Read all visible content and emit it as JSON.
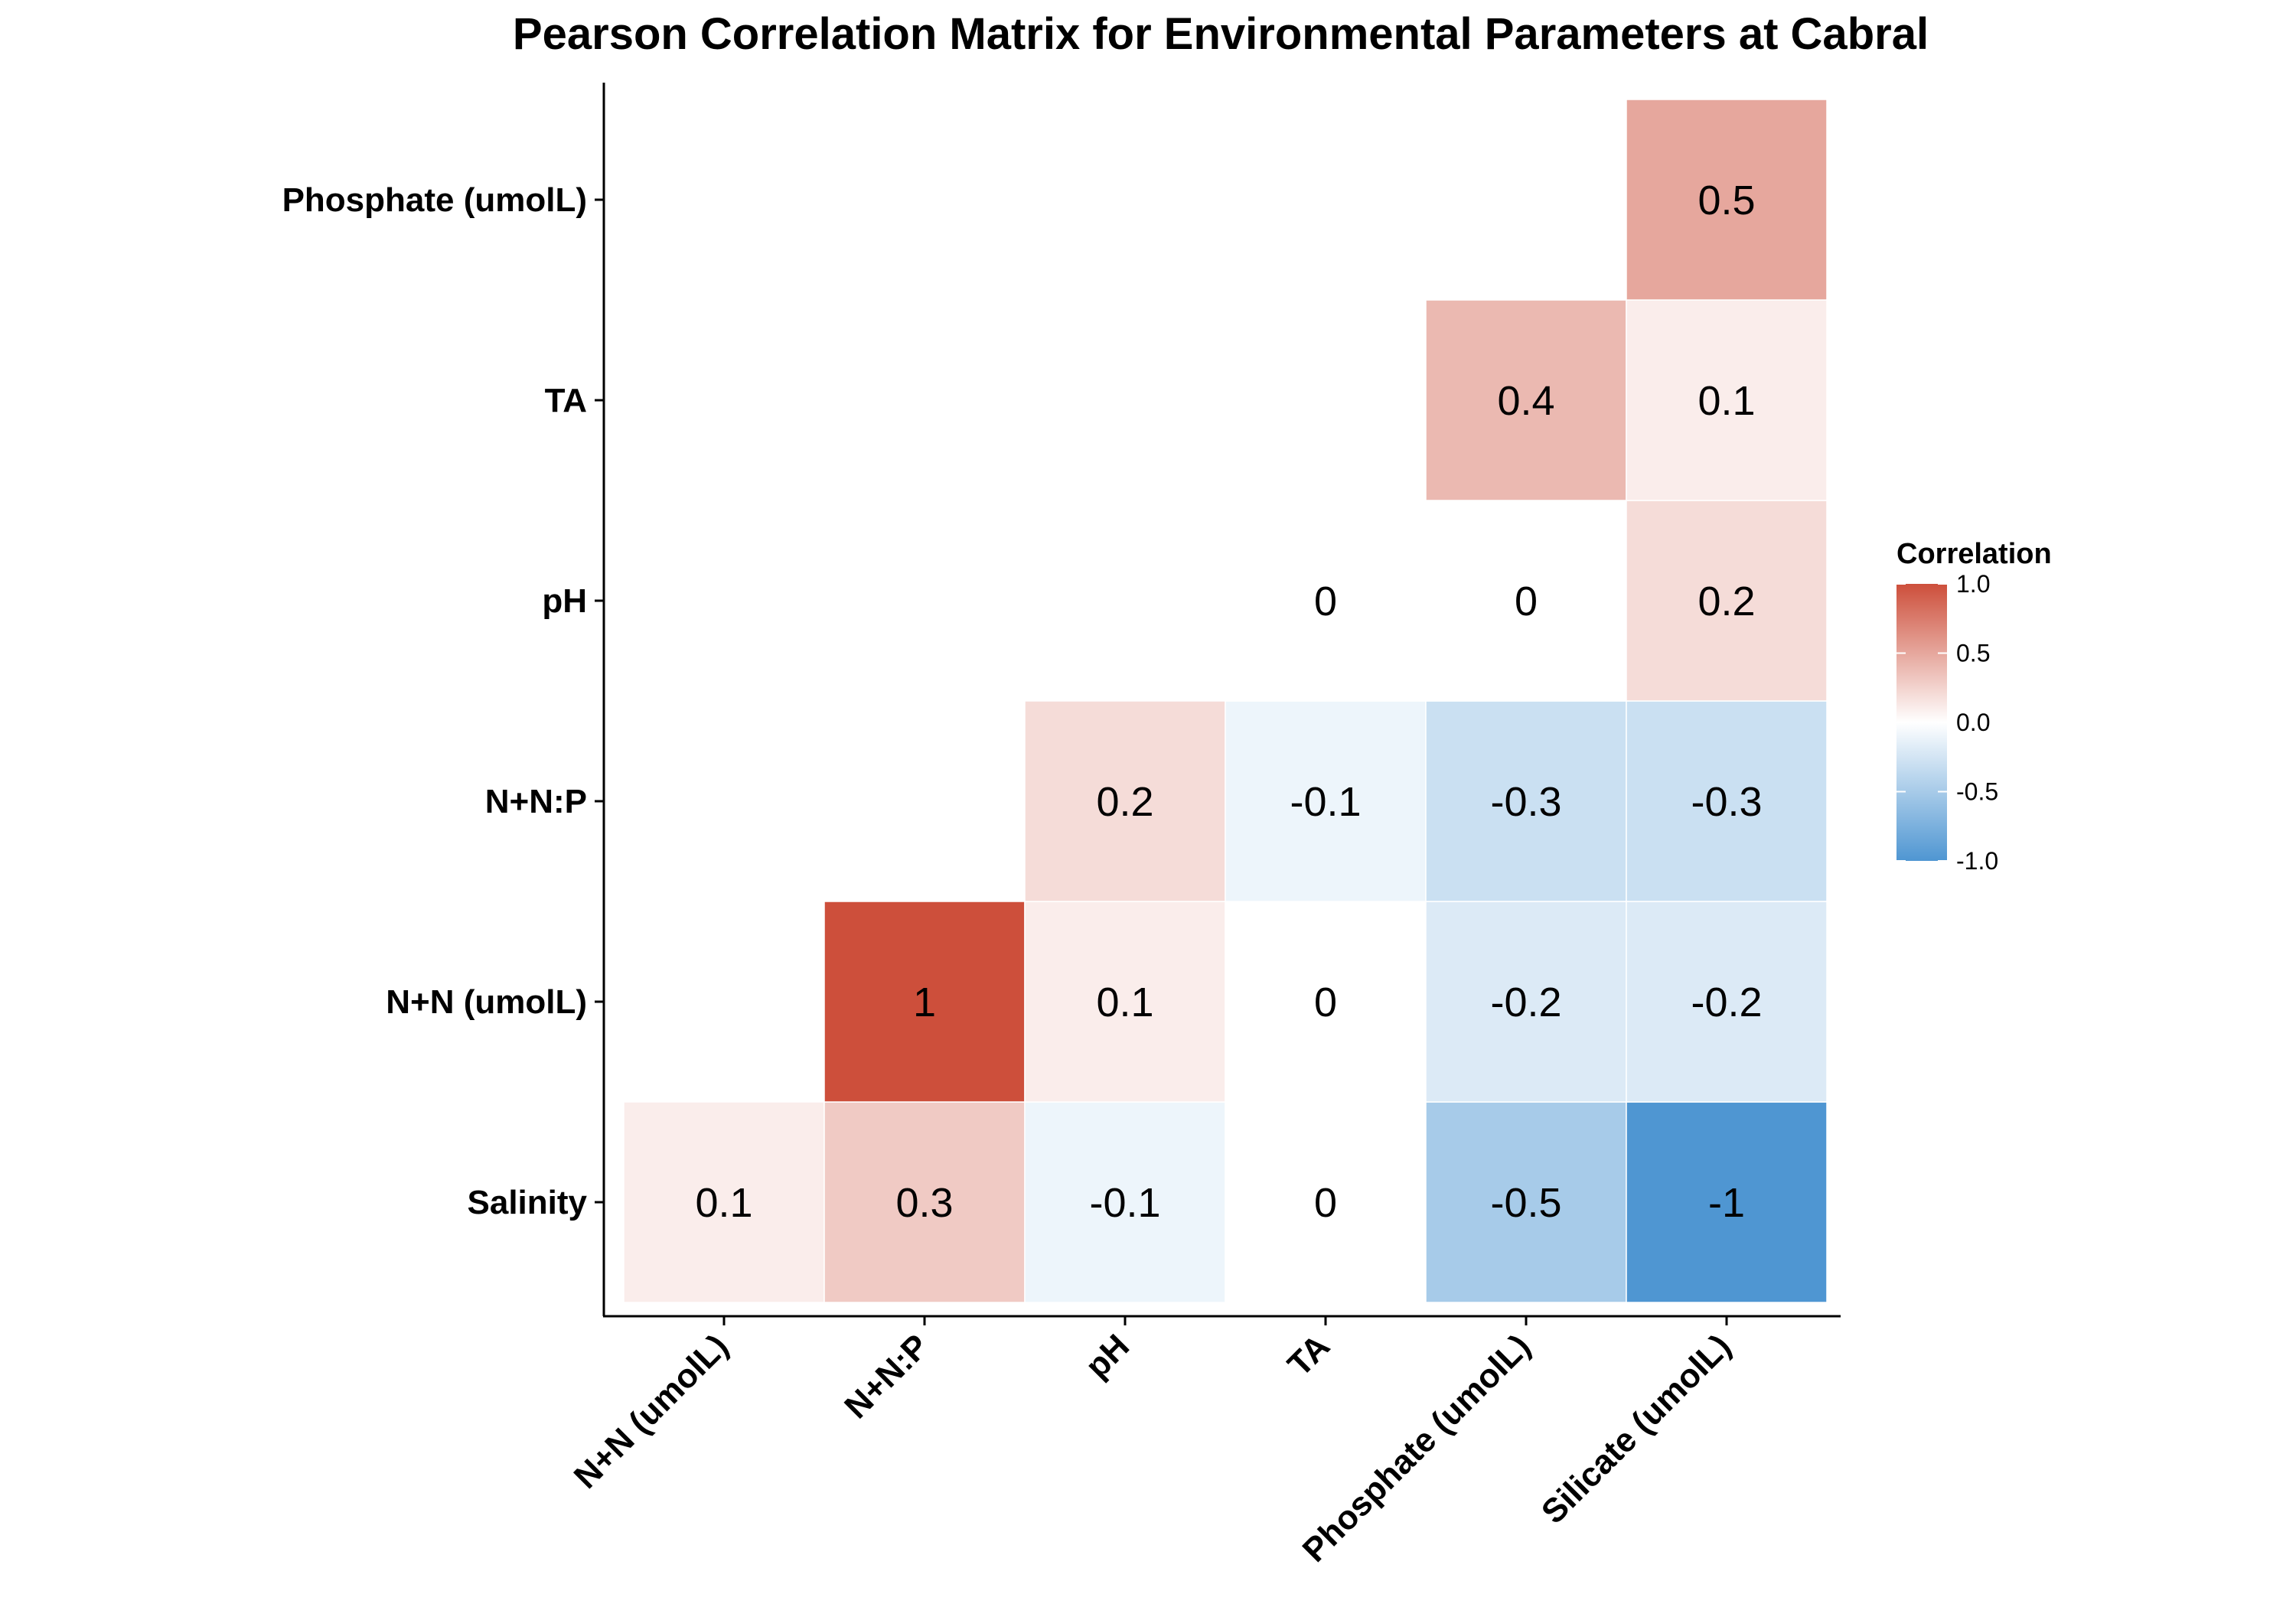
{
  "chart_data": {
    "type": "heatmap",
    "title": "Pearson Correlation Matrix for Environmental Parameters at Cabral",
    "x_categories": [
      "N+N (umolL)",
      "N+N:P",
      "pH",
      "TA",
      "Phosphate (umolL)",
      "Silicate (umolL)"
    ],
    "y_categories": [
      "Salinity",
      "N+N (umolL)",
      "N+N:P",
      "pH",
      "TA",
      "Phosphate (umolL)"
    ],
    "cells": [
      {
        "x": "N+N (umolL)",
        "y": "Salinity",
        "value": 0.1,
        "label": "0.1"
      },
      {
        "x": "N+N:P",
        "y": "Salinity",
        "value": 0.3,
        "label": "0.3"
      },
      {
        "x": "pH",
        "y": "Salinity",
        "value": -0.1,
        "label": "-0.1"
      },
      {
        "x": "TA",
        "y": "Salinity",
        "value": 0,
        "label": "0"
      },
      {
        "x": "Phosphate (umolL)",
        "y": "Salinity",
        "value": -0.5,
        "label": "-0.5"
      },
      {
        "x": "Silicate (umolL)",
        "y": "Salinity",
        "value": -1,
        "label": "-1"
      },
      {
        "x": "N+N:P",
        "y": "N+N (umolL)",
        "value": 1,
        "label": "1"
      },
      {
        "x": "pH",
        "y": "N+N (umolL)",
        "value": 0.1,
        "label": "0.1"
      },
      {
        "x": "TA",
        "y": "N+N (umolL)",
        "value": 0,
        "label": "0"
      },
      {
        "x": "Phosphate (umolL)",
        "y": "N+N (umolL)",
        "value": -0.2,
        "label": "-0.2"
      },
      {
        "x": "Silicate (umolL)",
        "y": "N+N (umolL)",
        "value": -0.2,
        "label": "-0.2"
      },
      {
        "x": "pH",
        "y": "N+N:P",
        "value": 0.2,
        "label": "0.2"
      },
      {
        "x": "TA",
        "y": "N+N:P",
        "value": -0.1,
        "label": "-0.1"
      },
      {
        "x": "Phosphate (umolL)",
        "y": "N+N:P",
        "value": -0.3,
        "label": "-0.3"
      },
      {
        "x": "Silicate (umolL)",
        "y": "N+N:P",
        "value": -0.3,
        "label": "-0.3"
      },
      {
        "x": "TA",
        "y": "pH",
        "value": 0,
        "label": "0"
      },
      {
        "x": "Phosphate (umolL)",
        "y": "pH",
        "value": 0,
        "label": "0"
      },
      {
        "x": "Silicate (umolL)",
        "y": "pH",
        "value": 0.2,
        "label": "0.2"
      },
      {
        "x": "Phosphate (umolL)",
        "y": "TA",
        "value": 0.4,
        "label": "0.4"
      },
      {
        "x": "Silicate (umolL)",
        "y": "TA",
        "value": 0.1,
        "label": "0.1"
      },
      {
        "x": "Silicate (umolL)",
        "y": "Phosphate (umolL)",
        "value": 0.5,
        "label": "0.5"
      }
    ],
    "legend": {
      "title": "Correlation",
      "ticks": [
        "1.0",
        "0.5",
        "0.0",
        "-0.5",
        "-1.0"
      ],
      "tick_values": [
        1,
        0.5,
        0,
        -0.5,
        -1
      ],
      "range": [
        -1,
        1
      ],
      "placement": "right"
    },
    "colors": {
      "low": "#4f96d2",
      "mid": "#ffffff",
      "high": "#cd4f3b"
    },
    "grid": false
  }
}
